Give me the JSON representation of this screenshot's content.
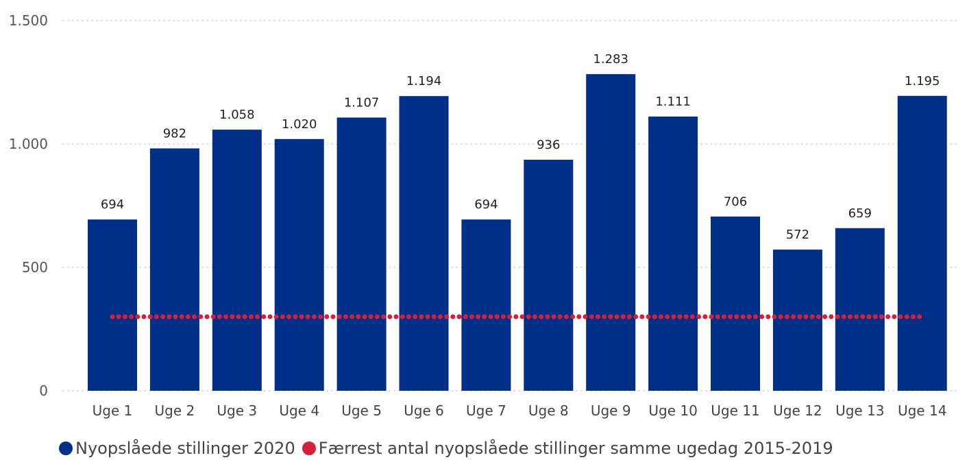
{
  "chart_data": {
    "type": "bar",
    "categories": [
      "Uge 1",
      "Uge 2",
      "Uge 3",
      "Uge 4",
      "Uge 5",
      "Uge 6",
      "Uge 7",
      "Uge 8",
      "Uge 9",
      "Uge 10",
      "Uge 11",
      "Uge 12",
      "Uge 13",
      "Uge 14"
    ],
    "series": [
      {
        "name": "Nyopslåede stillinger 2020",
        "type": "bar",
        "color": "#002f87",
        "values": [
          694,
          982,
          1058,
          1020,
          1107,
          1194,
          694,
          936,
          1283,
          1111,
          706,
          572,
          659,
          1195
        ],
        "value_labels": [
          "694",
          "982",
          "1.058",
          "1.020",
          "1.107",
          "1.194",
          "694",
          "936",
          "1.283",
          "1.111",
          "706",
          "572",
          "659",
          "1.195"
        ]
      },
      {
        "name": "Færrest antal nyopslåede stillinger samme ugedag 2015-2019",
        "type": "line",
        "style": "dotted",
        "color": "#d6203b",
        "values": [
          300,
          300,
          300,
          300,
          300,
          300,
          300,
          300,
          300,
          300,
          300,
          300,
          300,
          300
        ]
      }
    ],
    "yticks": [
      0,
      500,
      1000,
      1500
    ],
    "ytick_labels": [
      "0",
      "500",
      "1.000",
      "1.500"
    ],
    "ylim": [
      0,
      1500
    ],
    "grid": "horizontal dotted",
    "legend_position": "bottom"
  },
  "legend": {
    "items": [
      {
        "label": "Nyopslåede stillinger 2020",
        "color": "#002f87"
      },
      {
        "label": "Færrest antal nyopslåede stillinger samme ugedag 2015-2019",
        "color": "#d6203b"
      }
    ]
  }
}
